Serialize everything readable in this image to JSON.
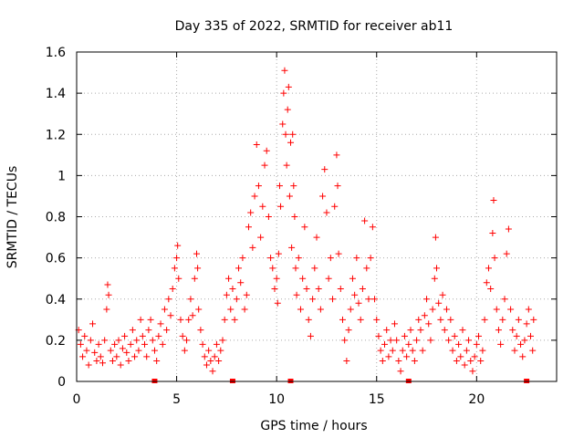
{
  "chart_data": {
    "type": "scatter",
    "title": "Day 335 of 2022, SRMTID for receiver ab11",
    "xlabel": "GPS time / hours",
    "ylabel": "SRMTID / TECUs",
    "xlim": [
      0,
      24
    ],
    "ylim": [
      0,
      1.6
    ],
    "xticks": [
      0,
      5,
      10,
      15,
      20
    ],
    "xtick_labels": [
      "0",
      "5",
      "10",
      "15",
      "20"
    ],
    "yticks": [
      0,
      0.2,
      0.4,
      0.6,
      0.8,
      1.0,
      1.2,
      1.4,
      1.6
    ],
    "ytick_labels": [
      "0",
      "0.2",
      "0.4",
      "0.6",
      "0.8",
      "1",
      "1.2",
      "1.4",
      "1.6"
    ],
    "grid": true,
    "marker": "plus",
    "color": "#ff0000",
    "series": [
      {
        "name": "SRMTID",
        "points": [
          [
            0.1,
            0.25
          ],
          [
            0.2,
            0.18
          ],
          [
            0.3,
            0.12
          ],
          [
            0.4,
            0.22
          ],
          [
            0.5,
            0.15
          ],
          [
            0.6,
            0.08
          ],
          [
            0.7,
            0.2
          ],
          [
            0.8,
            0.28
          ],
          [
            0.9,
            0.14
          ],
          [
            1.0,
            0.1
          ],
          [
            1.1,
            0.18
          ],
          [
            1.2,
            0.12
          ],
          [
            1.3,
            0.09
          ],
          [
            1.4,
            0.2
          ],
          [
            1.5,
            0.35
          ],
          [
            1.55,
            0.47
          ],
          [
            1.6,
            0.42
          ],
          [
            1.7,
            0.15
          ],
          [
            1.8,
            0.1
          ],
          [
            1.9,
            0.18
          ],
          [
            2.0,
            0.12
          ],
          [
            2.1,
            0.2
          ],
          [
            2.2,
            0.08
          ],
          [
            2.3,
            0.16
          ],
          [
            2.4,
            0.22
          ],
          [
            2.5,
            0.14
          ],
          [
            2.6,
            0.1
          ],
          [
            2.7,
            0.18
          ],
          [
            2.8,
            0.25
          ],
          [
            2.9,
            0.12
          ],
          [
            3.0,
            0.2
          ],
          [
            3.1,
            0.15
          ],
          [
            3.2,
            0.3
          ],
          [
            3.3,
            0.22
          ],
          [
            3.4,
            0.18
          ],
          [
            3.5,
            0.12
          ],
          [
            3.6,
            0.25
          ],
          [
            3.7,
            0.3
          ],
          [
            3.8,
            0.2
          ],
          [
            3.9,
            0.15
          ],
          [
            4.0,
            0.1
          ],
          [
            4.1,
            0.22
          ],
          [
            4.2,
            0.28
          ],
          [
            4.3,
            0.18
          ],
          [
            4.4,
            0.35
          ],
          [
            4.5,
            0.25
          ],
          [
            4.6,
            0.4
          ],
          [
            4.7,
            0.32
          ],
          [
            4.8,
            0.45
          ],
          [
            4.9,
            0.55
          ],
          [
            5.0,
            0.6
          ],
          [
            5.05,
            0.66
          ],
          [
            5.1,
            0.5
          ],
          [
            5.2,
            0.3
          ],
          [
            5.3,
            0.22
          ],
          [
            5.4,
            0.15
          ],
          [
            5.5,
            0.2
          ],
          [
            5.6,
            0.3
          ],
          [
            5.7,
            0.4
          ],
          [
            5.8,
            0.32
          ],
          [
            5.9,
            0.5
          ],
          [
            6.0,
            0.62
          ],
          [
            6.05,
            0.55
          ],
          [
            6.1,
            0.35
          ],
          [
            6.2,
            0.25
          ],
          [
            6.3,
            0.18
          ],
          [
            6.4,
            0.12
          ],
          [
            6.5,
            0.08
          ],
          [
            6.6,
            0.15
          ],
          [
            6.7,
            0.1
          ],
          [
            6.8,
            0.05
          ],
          [
            6.9,
            0.12
          ],
          [
            7.0,
            0.18
          ],
          [
            7.1,
            0.1
          ],
          [
            7.2,
            0.15
          ],
          [
            7.3,
            0.2
          ],
          [
            7.4,
            0.3
          ],
          [
            7.5,
            0.42
          ],
          [
            7.6,
            0.5
          ],
          [
            7.7,
            0.35
          ],
          [
            7.8,
            0.45
          ],
          [
            7.9,
            0.3
          ],
          [
            8.0,
            0.4
          ],
          [
            8.1,
            0.55
          ],
          [
            8.2,
            0.48
          ],
          [
            8.3,
            0.6
          ],
          [
            8.4,
            0.35
          ],
          [
            8.5,
            0.42
          ],
          [
            8.6,
            0.75
          ],
          [
            8.7,
            0.82
          ],
          [
            8.8,
            0.65
          ],
          [
            8.9,
            0.9
          ],
          [
            9.0,
            1.15
          ],
          [
            9.1,
            0.95
          ],
          [
            9.2,
            0.7
          ],
          [
            9.3,
            0.85
          ],
          [
            9.4,
            1.05
          ],
          [
            9.5,
            1.12
          ],
          [
            9.6,
            0.8
          ],
          [
            9.7,
            0.6
          ],
          [
            9.8,
            0.55
          ],
          [
            9.9,
            0.45
          ],
          [
            10.0,
            0.5
          ],
          [
            10.05,
            0.38
          ],
          [
            10.1,
            0.62
          ],
          [
            10.15,
            0.95
          ],
          [
            10.2,
            0.85
          ],
          [
            10.3,
            1.25
          ],
          [
            10.35,
            1.4
          ],
          [
            10.4,
            1.51
          ],
          [
            10.45,
            1.2
          ],
          [
            10.5,
            1.05
          ],
          [
            10.55,
            1.32
          ],
          [
            10.6,
            1.43
          ],
          [
            10.65,
            0.9
          ],
          [
            10.7,
            1.16
          ],
          [
            10.75,
            0.65
          ],
          [
            10.8,
            1.2
          ],
          [
            10.85,
            0.95
          ],
          [
            10.9,
            0.8
          ],
          [
            10.95,
            0.55
          ],
          [
            11.0,
            0.42
          ],
          [
            11.1,
            0.6
          ],
          [
            11.2,
            0.35
          ],
          [
            11.3,
            0.5
          ],
          [
            11.4,
            0.75
          ],
          [
            11.5,
            0.45
          ],
          [
            11.6,
            0.3
          ],
          [
            11.7,
            0.22
          ],
          [
            11.8,
            0.4
          ],
          [
            11.9,
            0.55
          ],
          [
            12.0,
            0.7
          ],
          [
            12.1,
            0.45
          ],
          [
            12.2,
            0.35
          ],
          [
            12.3,
            0.9
          ],
          [
            12.4,
            1.03
          ],
          [
            12.5,
            0.82
          ],
          [
            12.6,
            0.5
          ],
          [
            12.7,
            0.6
          ],
          [
            12.8,
            0.4
          ],
          [
            12.9,
            0.85
          ],
          [
            13.0,
            1.1
          ],
          [
            13.05,
            0.95
          ],
          [
            13.1,
            0.62
          ],
          [
            13.2,
            0.45
          ],
          [
            13.3,
            0.3
          ],
          [
            13.4,
            0.2
          ],
          [
            13.5,
            0.1
          ],
          [
            13.6,
            0.25
          ],
          [
            13.7,
            0.35
          ],
          [
            13.8,
            0.5
          ],
          [
            13.9,
            0.42
          ],
          [
            14.0,
            0.6
          ],
          [
            14.1,
            0.38
          ],
          [
            14.2,
            0.3
          ],
          [
            14.3,
            0.45
          ],
          [
            14.4,
            0.78
          ],
          [
            14.5,
            0.55
          ],
          [
            14.6,
            0.4
          ],
          [
            14.7,
            0.6
          ],
          [
            14.8,
            0.75
          ],
          [
            14.9,
            0.4
          ],
          [
            15.0,
            0.3
          ],
          [
            15.1,
            0.22
          ],
          [
            15.2,
            0.15
          ],
          [
            15.3,
            0.1
          ],
          [
            15.4,
            0.18
          ],
          [
            15.5,
            0.25
          ],
          [
            15.6,
            0.12
          ],
          [
            15.7,
            0.2
          ],
          [
            15.8,
            0.15
          ],
          [
            15.9,
            0.28
          ],
          [
            16.0,
            0.2
          ],
          [
            16.1,
            0.1
          ],
          [
            16.2,
            0.05
          ],
          [
            16.3,
            0.15
          ],
          [
            16.4,
            0.22
          ],
          [
            16.5,
            0.12
          ],
          [
            16.6,
            0.18
          ],
          [
            16.7,
            0.25
          ],
          [
            16.8,
            0.15
          ],
          [
            16.9,
            0.1
          ],
          [
            17.0,
            0.2
          ],
          [
            17.1,
            0.3
          ],
          [
            17.2,
            0.25
          ],
          [
            17.3,
            0.15
          ],
          [
            17.4,
            0.32
          ],
          [
            17.5,
            0.4
          ],
          [
            17.6,
            0.28
          ],
          [
            17.7,
            0.2
          ],
          [
            17.8,
            0.35
          ],
          [
            17.9,
            0.5
          ],
          [
            17.95,
            0.7
          ],
          [
            18.0,
            0.55
          ],
          [
            18.1,
            0.38
          ],
          [
            18.2,
            0.3
          ],
          [
            18.3,
            0.42
          ],
          [
            18.4,
            0.25
          ],
          [
            18.5,
            0.35
          ],
          [
            18.6,
            0.2
          ],
          [
            18.7,
            0.3
          ],
          [
            18.8,
            0.15
          ],
          [
            18.9,
            0.22
          ],
          [
            19.0,
            0.1
          ],
          [
            19.1,
            0.18
          ],
          [
            19.2,
            0.12
          ],
          [
            19.3,
            0.25
          ],
          [
            19.4,
            0.08
          ],
          [
            19.5,
            0.15
          ],
          [
            19.6,
            0.2
          ],
          [
            19.7,
            0.1
          ],
          [
            19.8,
            0.05
          ],
          [
            19.9,
            0.12
          ],
          [
            20.0,
            0.18
          ],
          [
            20.1,
            0.22
          ],
          [
            20.2,
            0.1
          ],
          [
            20.3,
            0.15
          ],
          [
            20.4,
            0.3
          ],
          [
            20.5,
            0.48
          ],
          [
            20.6,
            0.55
          ],
          [
            20.7,
            0.45
          ],
          [
            20.8,
            0.72
          ],
          [
            20.85,
            0.88
          ],
          [
            20.9,
            0.6
          ],
          [
            21.0,
            0.35
          ],
          [
            21.1,
            0.25
          ],
          [
            21.2,
            0.18
          ],
          [
            21.3,
            0.3
          ],
          [
            21.4,
            0.4
          ],
          [
            21.5,
            0.62
          ],
          [
            21.6,
            0.74
          ],
          [
            21.7,
            0.35
          ],
          [
            21.8,
            0.25
          ],
          [
            21.9,
            0.15
          ],
          [
            22.0,
            0.22
          ],
          [
            22.1,
            0.3
          ],
          [
            22.2,
            0.18
          ],
          [
            22.3,
            0.12
          ],
          [
            22.4,
            0.2
          ],
          [
            22.5,
            0.28
          ],
          [
            22.6,
            0.35
          ],
          [
            22.7,
            0.22
          ],
          [
            22.8,
            0.15
          ],
          [
            22.85,
            0.3
          ]
        ]
      }
    ],
    "axis_marks": [
      3.9,
      7.8,
      10.7,
      16.6,
      22.5
    ]
  }
}
